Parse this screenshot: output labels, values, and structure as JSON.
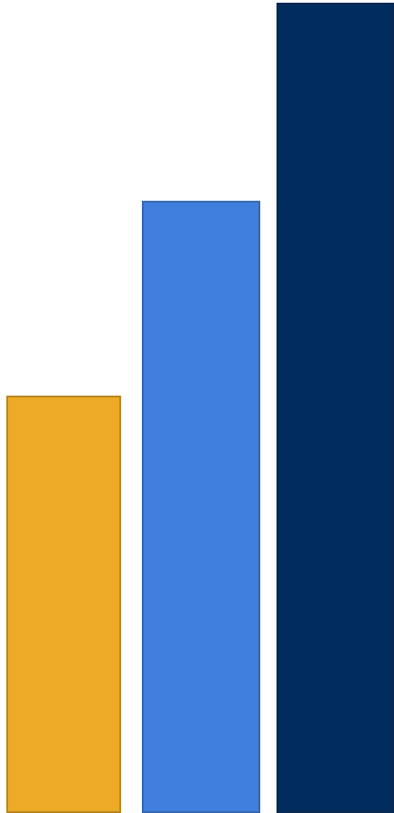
{
  "chart_data": {
    "type": "bar",
    "categories": [
      "",
      "",
      ""
    ],
    "values": [
      51.4,
      75.5,
      100
    ],
    "colors": [
      "#ECAA27",
      "#417FDC",
      "#002D5E"
    ],
    "edge_colors": [
      "#B8861E",
      "#3566B0",
      "#0A2850"
    ],
    "title": "",
    "xlabel": "",
    "ylabel": "",
    "ylim": [
      0,
      100
    ],
    "grid": false,
    "legend": "none"
  }
}
